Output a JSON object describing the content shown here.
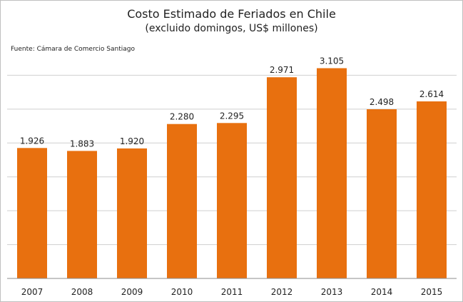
{
  "chart_data": {
    "type": "bar",
    "title": "Costo Estimado de Feriados en Chile",
    "subtitle": "(excluido domingos, US$ millones)",
    "source": "Fuente: Cámara de Comercio Santiago",
    "categories": [
      "2007",
      "2008",
      "2009",
      "2010",
      "2011",
      "2012",
      "2013",
      "2014",
      "2015"
    ],
    "values": [
      1926,
      1883,
      1920,
      2280,
      2295,
      2971,
      3105,
      2498,
      2614
    ],
    "value_labels": [
      "1.926",
      "1.883",
      "1.920",
      "2.280",
      "2.295",
      "2.971",
      "3.105",
      "2.498",
      "2.614"
    ],
    "ylim": [
      0,
      3500
    ],
    "grid": true,
    "colors": {
      "bar": "#E8700F",
      "grid": "#cfcfcf",
      "axis": "#8c8c8c"
    }
  }
}
